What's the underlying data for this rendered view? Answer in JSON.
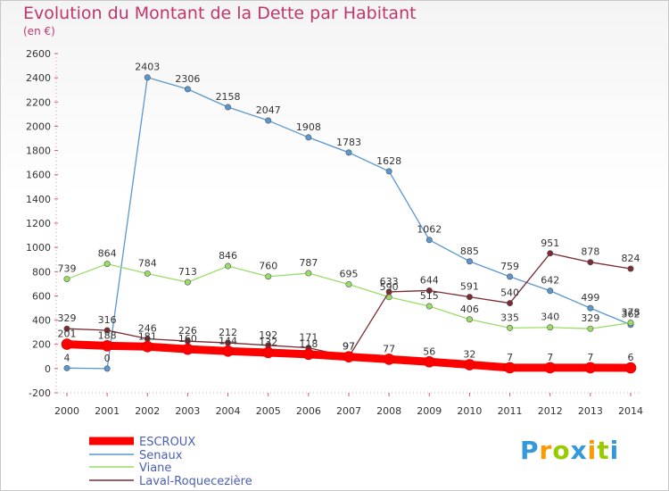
{
  "title": "Evolution du Montant de la Dette par Habitant",
  "unit": "(en €)",
  "chart_data": {
    "type": "line",
    "x": [
      "2000",
      "2001",
      "2002",
      "2003",
      "2004",
      "2005",
      "2006",
      "2007",
      "2008",
      "2009",
      "2010",
      "2011",
      "2012",
      "2013",
      "2014"
    ],
    "ylim": [
      -200,
      2600
    ],
    "yticks": [
      -200,
      0,
      200,
      400,
      600,
      800,
      1000,
      1200,
      1400,
      1600,
      1800,
      2000,
      2200,
      2400,
      2600
    ],
    "grid": false,
    "legend": "bottom-left",
    "series": [
      {
        "name": "ESCROUX",
        "color": "#ff0000",
        "values": [
          201,
          188,
          181,
          160,
          144,
          132,
          118,
          97,
          77,
          56,
          32,
          7,
          7,
          7,
          6
        ],
        "label_values": [
          "201",
          "188",
          "181",
          "160",
          "144",
          "132",
          "118",
          "97",
          "77",
          "56",
          "32",
          "7",
          "7",
          "7",
          "6"
        ]
      },
      {
        "name": "Senaux",
        "color": "#5b97cf",
        "values": [
          4,
          0,
          2403,
          2306,
          2158,
          2047,
          1908,
          1783,
          1628,
          1062,
          885,
          759,
          642,
          499,
          362
        ],
        "label_values": [
          "4",
          "0",
          "2403",
          "2306",
          "2158",
          "2047",
          "1908",
          "1783",
          "1628",
          "1062",
          "885",
          "759",
          "642",
          "499",
          "362"
        ]
      },
      {
        "name": "Viane",
        "color": "#99dd66",
        "values": [
          739,
          864,
          784,
          713,
          846,
          760,
          787,
          695,
          590,
          515,
          406,
          335,
          340,
          329,
          378
        ],
        "label_values": [
          "739",
          "864",
          "784",
          "713",
          "846",
          "760",
          "787",
          "695",
          "590",
          "515",
          "406",
          "335",
          "340",
          "329",
          "378"
        ]
      },
      {
        "name": "Laval-Roquecezière",
        "color": "#7a2b33",
        "values": [
          329,
          316,
          246,
          226,
          212,
          192,
          171,
          97,
          633,
          644,
          591,
          540,
          951,
          878,
          824
        ],
        "label_values": [
          "329",
          "316",
          "246",
          "226",
          "212",
          "192",
          "171",
          "97",
          "633",
          "644",
          "591",
          "540",
          "951",
          "878",
          "824"
        ]
      }
    ]
  },
  "logo": {
    "letters": [
      "P",
      "r",
      "o",
      "x",
      "i",
      "t",
      "i"
    ],
    "colors": [
      "#3399dd",
      "#ff9900",
      "#99cc00",
      "#3399dd",
      "#ff9900",
      "#99cc00",
      "#3399dd"
    ]
  }
}
